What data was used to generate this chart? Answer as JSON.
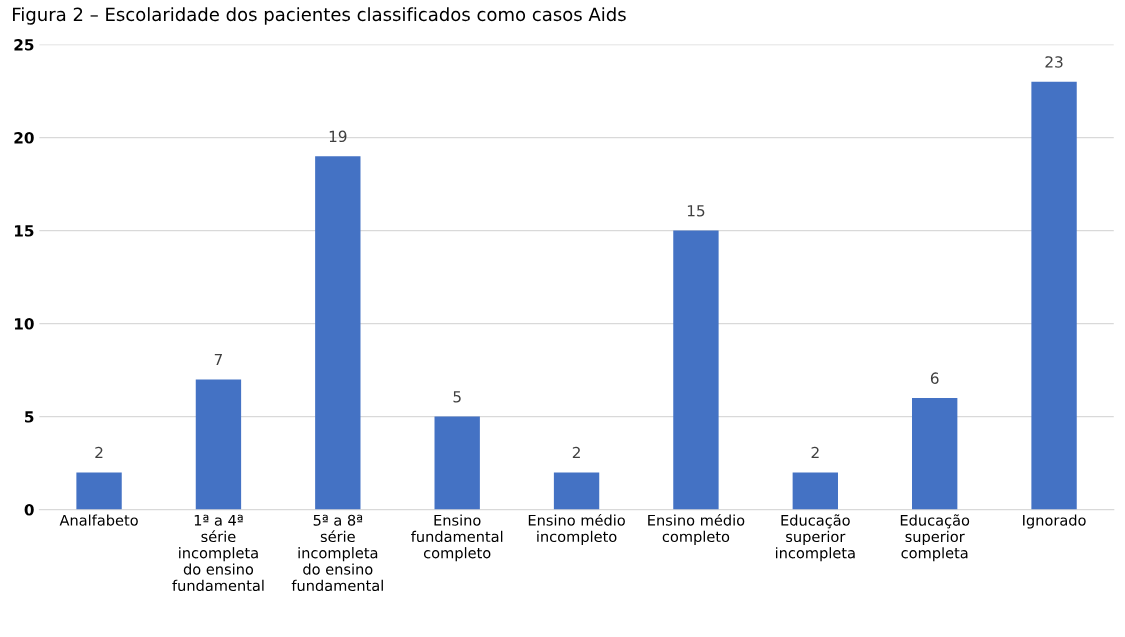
{
  "chart_data": {
    "type": "bar",
    "title": "Figura 2 – Escolaridade dos pacientes classificados como casos Aids",
    "categories": [
      "Analfabeto",
      "1ª a 4ª série incompleta do ensino fundamental",
      "5ª a 8ª série incompleta do ensino fundamental",
      "Ensino fundamental completo",
      "Ensino médio incompleto",
      "Ensino médio completo",
      "Educação superior incompleta",
      "Educação superior completa",
      "Ignorado"
    ],
    "values": [
      2,
      7,
      19,
      5,
      2,
      15,
      2,
      6,
      23
    ],
    "color": "#4472c4",
    "ylim": [
      0,
      25
    ],
    "yticks": [
      0,
      5,
      10,
      15,
      20,
      25
    ],
    "grid": "y",
    "data_labels": true
  }
}
